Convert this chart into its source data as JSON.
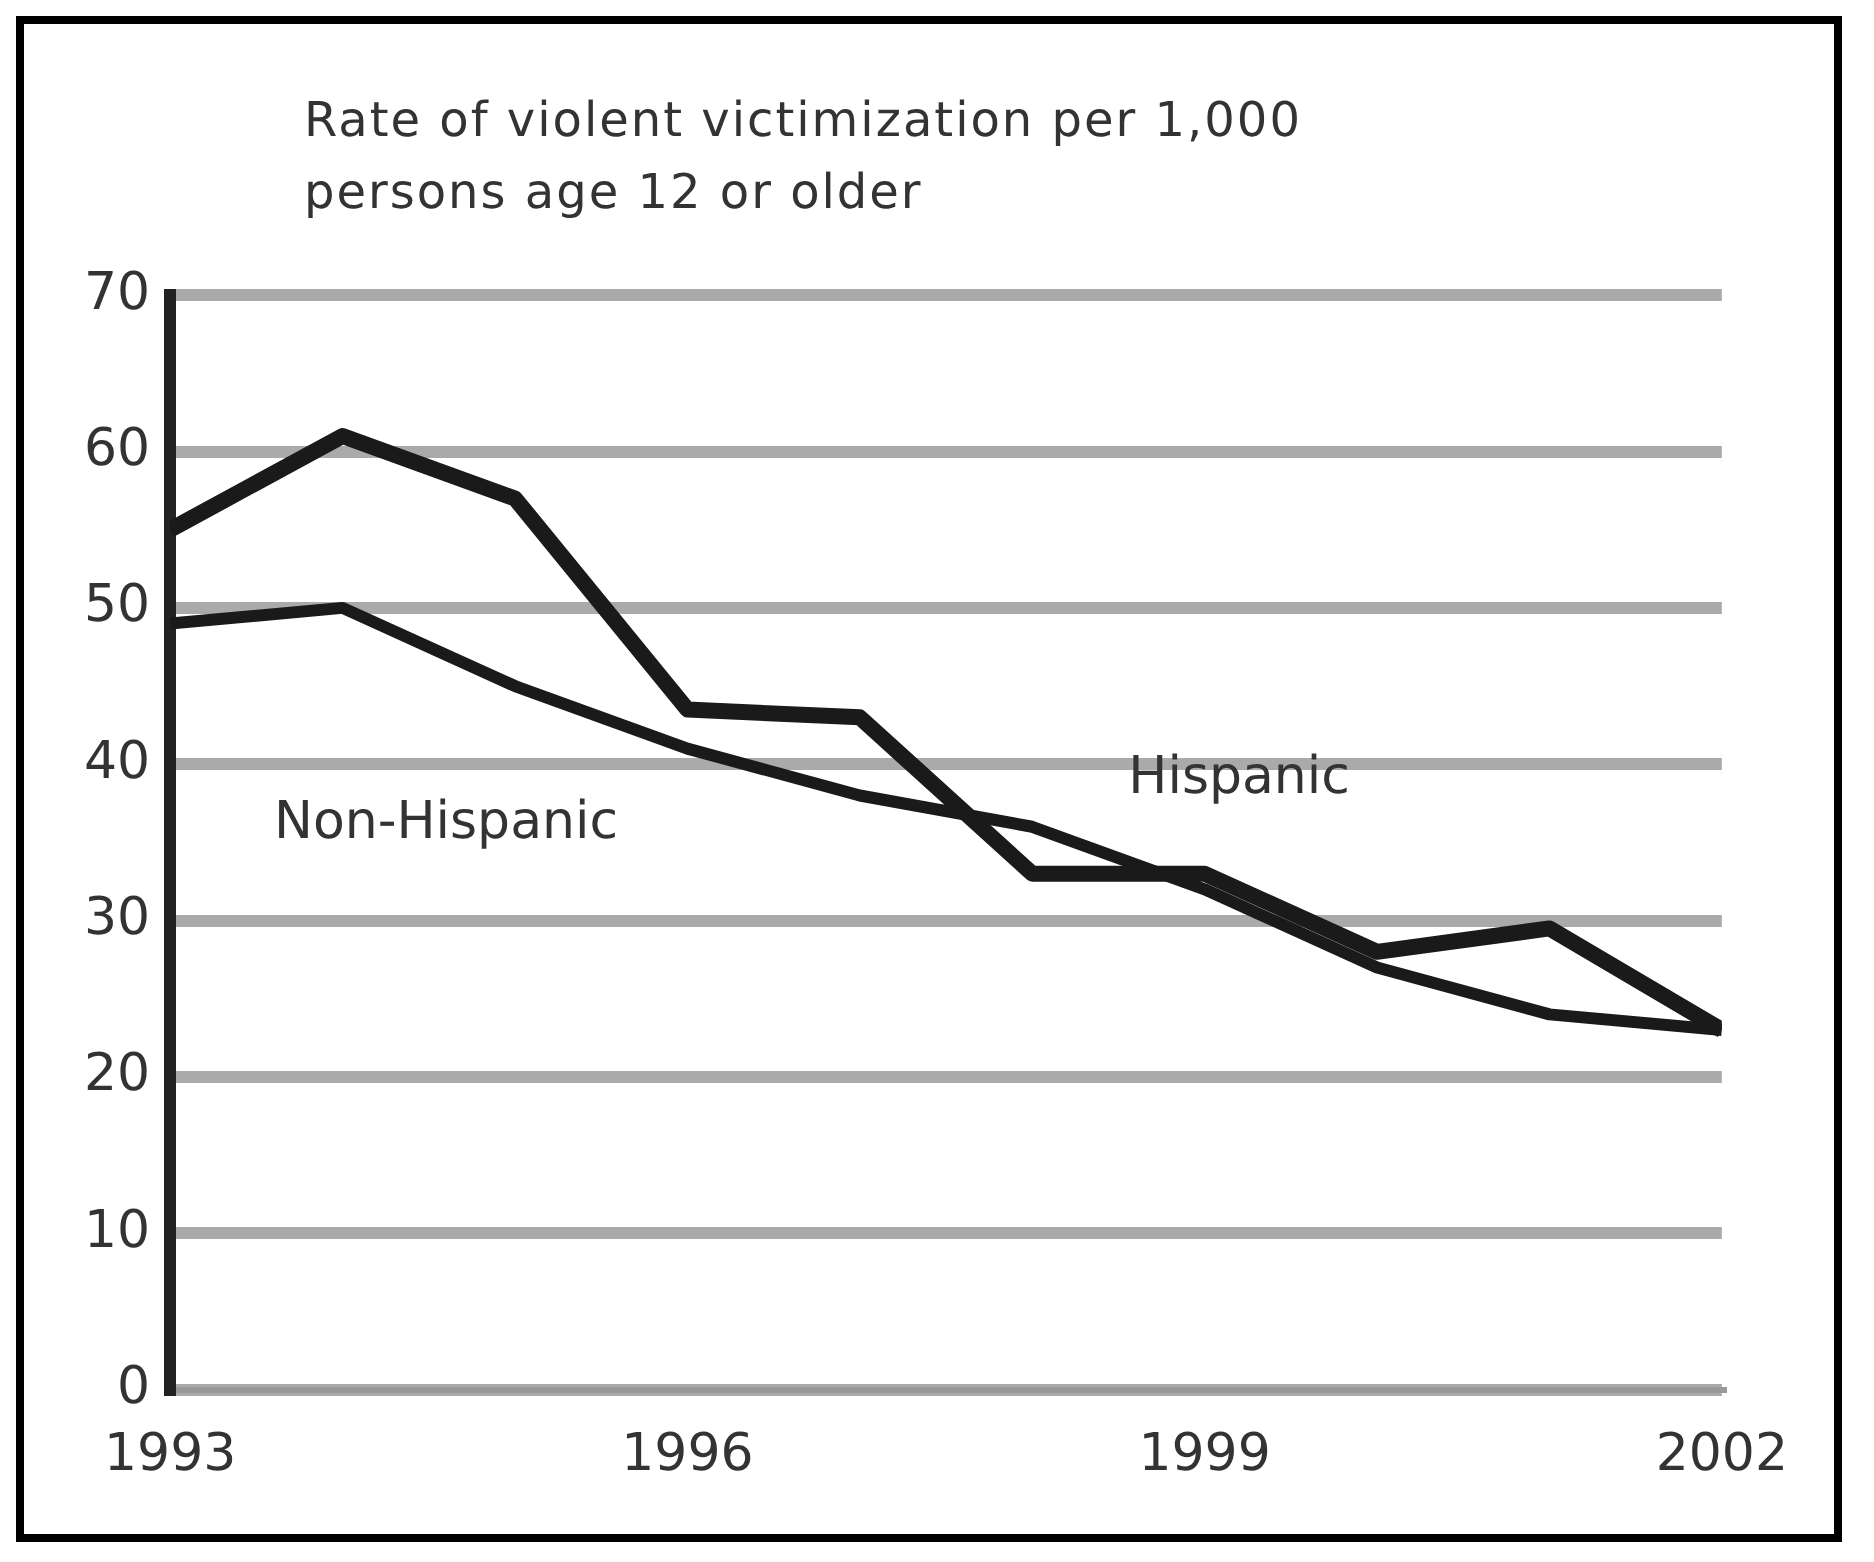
{
  "chart_data": {
    "type": "line",
    "title": "Rate of violent victimization per 1,000 persons age 12 or older",
    "x": [
      1993,
      1994,
      1995,
      1996,
      1997,
      1998,
      1999,
      2000,
      2001,
      2002
    ],
    "series": [
      {
        "name": "Hispanic",
        "color": "#1a1a1a",
        "values": [
          55,
          61,
          57,
          43.5,
          43,
          33,
          33,
          28,
          29.5,
          23
        ]
      },
      {
        "name": "Non-Hispanic",
        "color": "#1a1a1a",
        "values": [
          49,
          50,
          45,
          41,
          38,
          36,
          32,
          27,
          24,
          23
        ]
      }
    ],
    "xlim": [
      1993,
      2002
    ],
    "xticks": [
      1993,
      1996,
      1999,
      2002
    ],
    "ylim": [
      0,
      70
    ],
    "yticks": [
      0,
      10,
      20,
      30,
      40,
      50,
      60,
      70
    ],
    "grid": "y",
    "legend": false,
    "marker": "none",
    "line_style": "solid"
  }
}
